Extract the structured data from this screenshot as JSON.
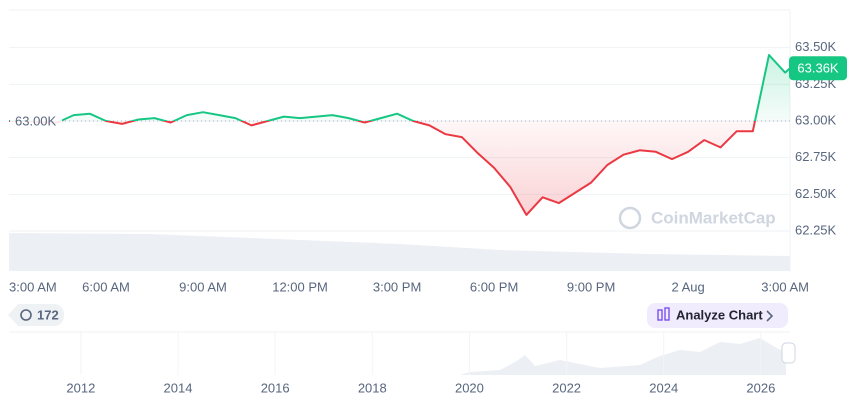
{
  "chart_data": {
    "type": "line",
    "x": [
      0,
      0.5,
      1,
      1.5,
      2,
      2.5,
      3,
      3.5,
      4,
      4.5,
      5,
      5.5,
      6,
      6.5,
      7,
      7.5,
      8,
      8.5,
      9,
      9.5,
      10,
      10.5,
      11,
      11.5,
      12,
      12.5,
      13,
      13.5,
      14,
      14.5,
      15,
      15.5,
      16,
      16.5,
      17,
      17.5,
      18,
      18.5,
      19,
      19.5,
      20,
      20.5,
      21,
      21.5,
      22,
      22.5,
      23,
      23.5,
      24,
      24.15
    ],
    "values": [
      63.0,
      63.0,
      62.99,
      62.99,
      63.04,
      63.05,
      63.0,
      62.98,
      63.01,
      63.02,
      62.99,
      63.04,
      63.06,
      63.04,
      63.02,
      62.97,
      63.0,
      63.03,
      63.02,
      63.03,
      63.04,
      63.02,
      62.99,
      63.02,
      63.05,
      63.0,
      62.97,
      62.91,
      62.89,
      62.78,
      62.68,
      62.55,
      62.36,
      62.48,
      62.44,
      62.51,
      62.58,
      62.7,
      62.77,
      62.8,
      62.79,
      62.74,
      62.79,
      62.87,
      62.82,
      62.93,
      62.93,
      63.45,
      63.33,
      63.36
    ],
    "color_up": "#16c784",
    "color_down": "#ea3943",
    "xlim": [
      0,
      24.15
    ],
    "xticks": [
      {
        "value": 0,
        "label": "3:00 AM"
      },
      {
        "value": 3,
        "label": "6:00 AM"
      },
      {
        "value": 6,
        "label": "9:00 AM"
      },
      {
        "value": 9,
        "label": "12:00 PM"
      },
      {
        "value": 12,
        "label": "3:00 PM"
      },
      {
        "value": 15,
        "label": "6:00 PM"
      },
      {
        "value": 18,
        "label": "9:00 PM"
      },
      {
        "value": 21,
        "label": "2 Aug"
      },
      {
        "value": 24,
        "label": "3:00 AM"
      }
    ],
    "ylim": [
      62.1,
      63.75
    ],
    "yticks": [
      {
        "value": 62.25,
        "label": "62.25K"
      },
      {
        "value": 62.5,
        "label": "62.50K"
      },
      {
        "value": 62.75,
        "label": "62.75K"
      },
      {
        "value": 63,
        "label": "63.00K"
      },
      {
        "value": 63.25,
        "label": "63.25K"
      },
      {
        "value": 63.5,
        "label": "63.50K"
      }
    ],
    "grid": true,
    "baseline": {
      "value": 63,
      "label": "63.00K"
    },
    "last_price": {
      "value": 63.36,
      "label": "63.36K"
    },
    "watermark": "CoinMarketCap",
    "navigator": {
      "xlim": [
        2010.52,
        2026.6
      ],
      "xticks": [
        2012,
        2014,
        2016,
        2018,
        2020,
        2022,
        2024,
        2026
      ]
    }
  },
  "controls": {
    "history_count": 172,
    "analyze_button": "Analyze Chart"
  }
}
